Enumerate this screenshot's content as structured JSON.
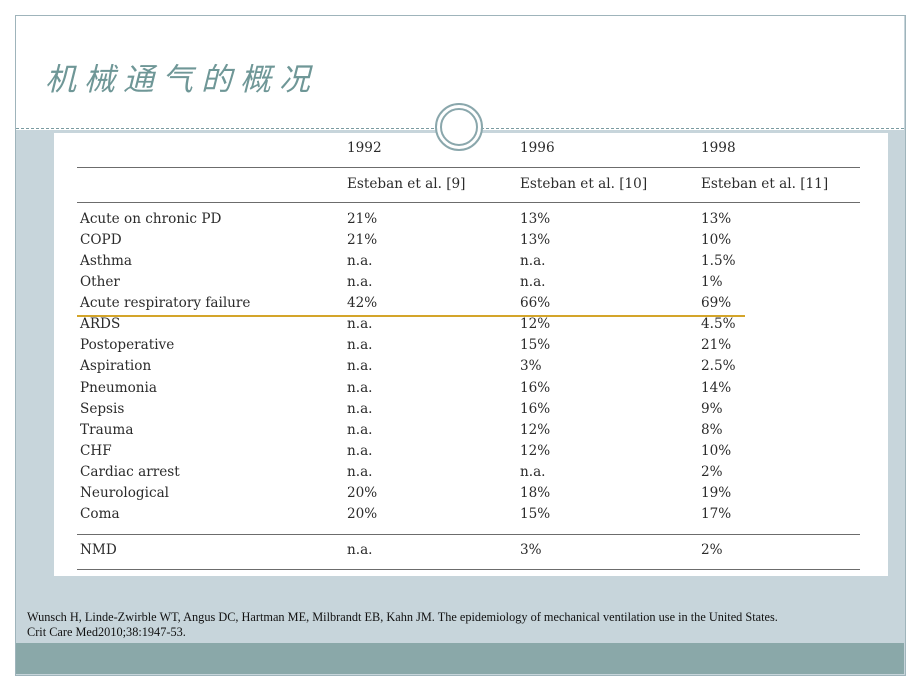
{
  "slide": {
    "title": "机械通气的概况"
  },
  "table": {
    "years": [
      "1992",
      "1996",
      "1998"
    ],
    "sources": [
      "Esteban et al. [9]",
      "Esteban et al. [10]",
      "Esteban et al. [11]"
    ],
    "rows": [
      {
        "label": "Acute on chronic PD",
        "values": [
          "21%",
          "13%",
          "13%"
        ]
      },
      {
        "label": "COPD",
        "values": [
          "21%",
          "13%",
          "10%"
        ]
      },
      {
        "label": "Asthma",
        "values": [
          "n.a.",
          "n.a.",
          "1.5%"
        ]
      },
      {
        "label": "Other",
        "values": [
          "n.a.",
          "n.a.",
          "1%"
        ]
      },
      {
        "label": "Acute respiratory failure",
        "values": [
          "42%",
          "66%",
          "69%"
        ]
      },
      {
        "label": "ARDS",
        "values": [
          "n.a.",
          "12%",
          "4.5%"
        ]
      },
      {
        "label": "Postoperative",
        "values": [
          "n.a.",
          "15%",
          "21%"
        ]
      },
      {
        "label": "Aspiration",
        "values": [
          "n.a.",
          "3%",
          "2.5%"
        ]
      },
      {
        "label": "Pneumonia",
        "values": [
          "n.a.",
          "16%",
          "14%"
        ]
      },
      {
        "label": "Sepsis",
        "values": [
          "n.a.",
          "16%",
          "9%"
        ]
      },
      {
        "label": "Trauma",
        "values": [
          "n.a.",
          "12%",
          "8%"
        ]
      },
      {
        "label": "CHF",
        "values": [
          "n.a.",
          "12%",
          "10%"
        ]
      },
      {
        "label": "Cardiac arrest",
        "values": [
          "n.a.",
          "n.a.",
          "2%"
        ]
      },
      {
        "label": "Neurological",
        "values": [
          "20%",
          "18%",
          "19%"
        ]
      },
      {
        "label": "Coma",
        "values": [
          "20%",
          "15%",
          "17%"
        ]
      }
    ],
    "final_row": {
      "label": "NMD",
      "values": [
        "n.a.",
        "3%",
        "2%"
      ]
    }
  },
  "citation": {
    "line1": "Wunsch H, Linde-Zwirble WT, Angus DC, Hartman ME, Milbrandt EB, Kahn JM. The epidemiology of mechanical ventilation use in the United States.",
    "line2": "Crit Care Med2010;38:1947-53."
  },
  "colors": {
    "title": "#6f9797",
    "frame": "#c7d5db",
    "footer_band": "#8aa8a9",
    "highlight_rule": "#d4a52a"
  }
}
